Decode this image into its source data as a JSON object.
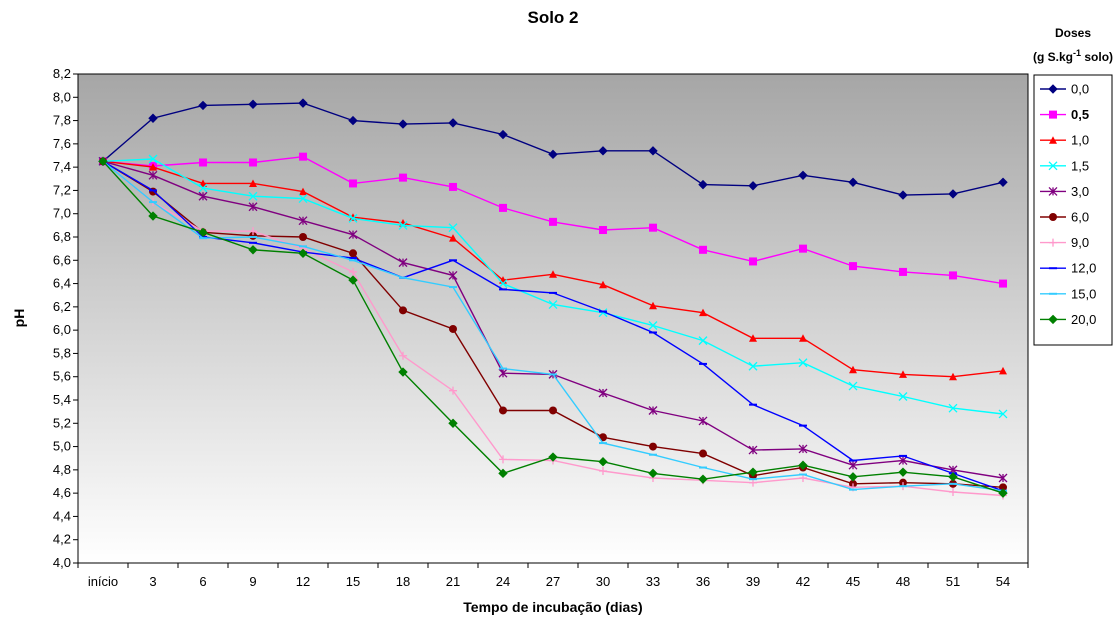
{
  "chart_data": {
    "type": "line",
    "title": "Solo 2",
    "xlabel": "Tempo de incubação (dias)",
    "ylabel": "pH",
    "categories": [
      "início",
      "3",
      "6",
      "9",
      "12",
      "15",
      "18",
      "21",
      "24",
      "27",
      "30",
      "33",
      "36",
      "39",
      "42",
      "45",
      "48",
      "51",
      "54"
    ],
    "ylim": [
      4.0,
      8.2
    ],
    "ytick_step": 0.2,
    "yticks": [
      "4,0",
      "4,2",
      "4,4",
      "4,6",
      "4,8",
      "5,0",
      "5,2",
      "5,4",
      "5,6",
      "5,8",
      "6,0",
      "6,2",
      "6,4",
      "6,6",
      "6,8",
      "7,0",
      "7,2",
      "7,4",
      "7,6",
      "7,8",
      "8,0",
      "8,2"
    ],
    "grid": false,
    "legend": {
      "title_line1": "Doses",
      "title_line2_pre": "(g S.kg",
      "title_line2_sup": "-1",
      "title_line2_post": " solo)",
      "placement": "right"
    },
    "series": [
      {
        "name": "0,0",
        "color": "#000080",
        "marker": "diamond",
        "values": [
          7.45,
          7.82,
          7.93,
          7.94,
          7.95,
          7.8,
          7.77,
          7.78,
          7.68,
          7.51,
          7.54,
          7.54,
          7.25,
          7.24,
          7.33,
          7.27,
          7.16,
          7.17,
          7.27
        ]
      },
      {
        "name": "0,5",
        "color": "#ff00ff",
        "marker": "square",
        "bold": true,
        "values": [
          7.45,
          7.41,
          7.44,
          7.44,
          7.49,
          7.26,
          7.31,
          7.23,
          7.05,
          6.93,
          6.86,
          6.88,
          6.69,
          6.59,
          6.7,
          6.55,
          6.5,
          6.47,
          6.4
        ]
      },
      {
        "name": "1,0",
        "color": "#ff0000",
        "marker": "triangle",
        "values": [
          7.45,
          7.4,
          7.26,
          7.26,
          7.19,
          6.97,
          6.92,
          6.79,
          6.43,
          6.48,
          6.39,
          6.21,
          6.15,
          5.93,
          5.93,
          5.66,
          5.62,
          5.6,
          5.65
        ]
      },
      {
        "name": "1,5",
        "color": "#00ffff",
        "marker": "x",
        "values": [
          7.45,
          7.47,
          7.22,
          7.15,
          7.13,
          6.96,
          6.9,
          6.88,
          6.4,
          6.22,
          6.15,
          6.04,
          5.91,
          5.69,
          5.72,
          5.52,
          5.43,
          5.33,
          5.28
        ]
      },
      {
        "name": "3,0",
        "color": "#800080",
        "marker": "star",
        "values": [
          7.45,
          7.33,
          7.15,
          7.06,
          6.94,
          6.82,
          6.58,
          6.47,
          5.63,
          5.62,
          5.46,
          5.31,
          5.22,
          4.97,
          4.98,
          4.84,
          4.88,
          4.8,
          4.73
        ]
      },
      {
        "name": "6,0",
        "color": "#800000",
        "marker": "circle",
        "values": [
          7.45,
          7.19,
          6.84,
          6.81,
          6.8,
          6.66,
          6.17,
          6.01,
          5.31,
          5.31,
          5.08,
          5.0,
          4.94,
          4.75,
          4.82,
          4.68,
          4.69,
          4.68,
          4.65
        ]
      },
      {
        "name": "9,0",
        "color": "#ff99cc",
        "marker": "plus",
        "values": [
          7.45,
          7.1,
          6.85,
          6.85,
          6.7,
          6.5,
          5.78,
          5.48,
          4.89,
          4.88,
          4.79,
          4.73,
          4.71,
          4.69,
          4.73,
          4.65,
          4.66,
          4.61,
          4.58
        ]
      },
      {
        "name": "12,0",
        "color": "#0000ff",
        "marker": "dash",
        "values": [
          7.45,
          7.2,
          6.8,
          6.75,
          6.67,
          6.62,
          6.45,
          6.6,
          6.35,
          6.32,
          6.16,
          5.98,
          5.71,
          5.36,
          5.18,
          4.88,
          4.92,
          4.77,
          4.62
        ]
      },
      {
        "name": "15,0",
        "color": "#33ccff",
        "marker": "dash",
        "values": [
          7.45,
          7.1,
          6.79,
          6.8,
          6.72,
          6.6,
          6.45,
          6.37,
          5.67,
          5.62,
          5.03,
          4.93,
          4.82,
          4.72,
          4.76,
          4.63,
          4.66,
          4.68,
          4.62
        ]
      },
      {
        "name": "20,0",
        "color": "#008000",
        "marker": "diamond",
        "values": [
          7.45,
          6.98,
          6.84,
          6.69,
          6.66,
          6.43,
          5.64,
          5.2,
          4.77,
          4.91,
          4.87,
          4.77,
          4.72,
          4.78,
          4.84,
          4.74,
          4.78,
          4.74,
          4.6
        ]
      }
    ]
  }
}
